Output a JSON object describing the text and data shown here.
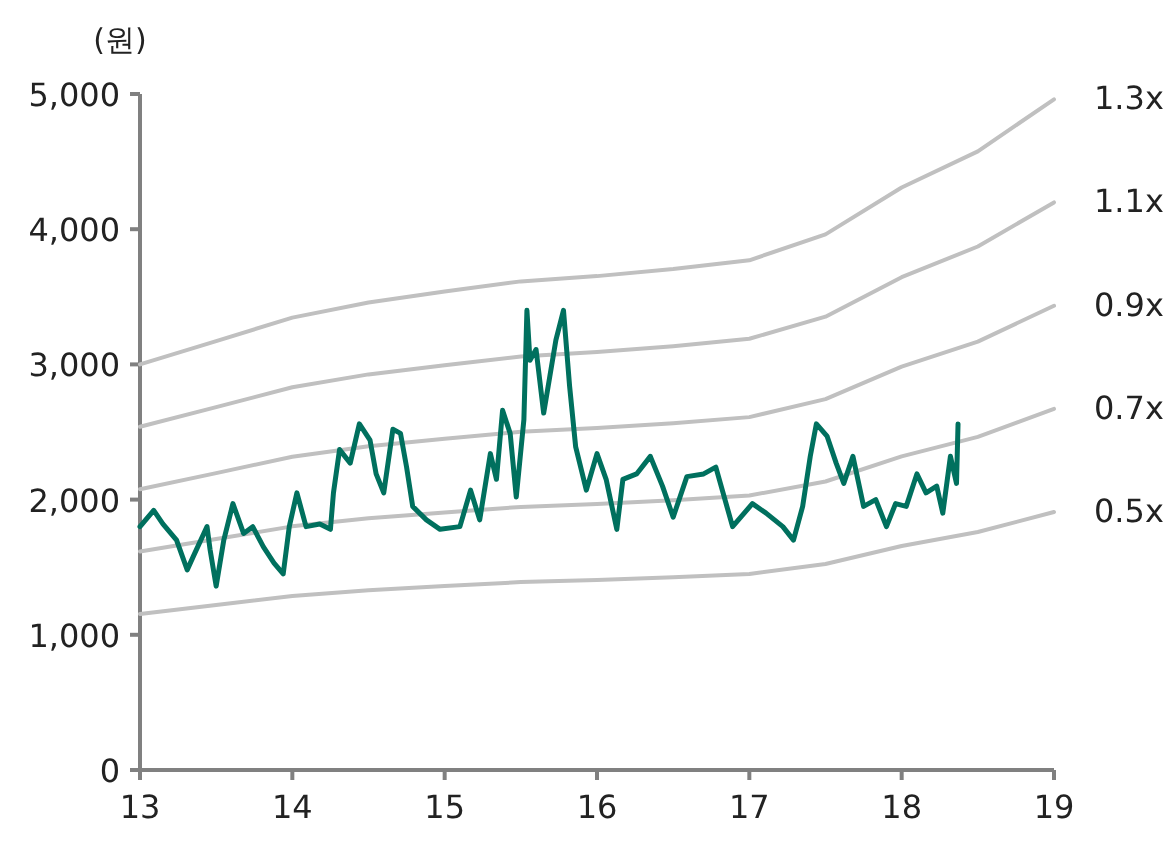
{
  "chart_data": {
    "type": "line",
    "ylabel": "(원)",
    "xlim": [
      13,
      19
    ],
    "xticks": [
      13,
      14,
      15,
      16,
      17,
      18,
      19
    ],
    "ylim": [
      0,
      5000
    ],
    "yticks": [
      {
        "value": 0,
        "label": "0"
      },
      {
        "value": 1000,
        "label": "1,000"
      },
      {
        "value": 2000,
        "label": "2,000"
      },
      {
        "value": 3000,
        "label": "3,000"
      },
      {
        "value": 4000,
        "label": "4,000"
      },
      {
        "value": 5000,
        "label": "5,000"
      }
    ],
    "grid": false,
    "legend": false,
    "marker": "none",
    "line_style": "solid",
    "series": [
      {
        "name": "1.3x",
        "color": "#c0c0c0",
        "x": [
          13,
          13.5,
          14,
          14.5,
          15,
          15.5,
          16,
          16.5,
          17,
          17.5,
          18,
          18.5,
          19
        ],
        "values": [
          3000,
          3172,
          3346,
          3458,
          3539,
          3614,
          3653,
          3705,
          3770,
          3962,
          4308,
          4576,
          4961
        ]
      },
      {
        "name": "1.1x",
        "color": "#c0c0c0",
        "x": [
          13,
          13.5,
          14,
          14.5,
          15,
          15.5,
          16,
          16.5,
          17,
          17.5,
          18,
          18.5,
          19
        ],
        "values": [
          2539,
          2684,
          2831,
          2926,
          2994,
          3058,
          3091,
          3135,
          3190,
          3353,
          3645,
          3872,
          4198
        ]
      },
      {
        "name": "0.9x",
        "color": "#c0c0c0",
        "x": [
          13,
          13.5,
          14,
          14.5,
          15,
          15.5,
          16,
          16.5,
          17,
          17.5,
          18,
          18.5,
          19
        ],
        "values": [
          2077,
          2196,
          2317,
          2394,
          2450,
          2502,
          2529,
          2565,
          2610,
          2743,
          2983,
          3168,
          3434
        ]
      },
      {
        "name": "0.7x",
        "color": "#c0c0c0",
        "x": [
          13,
          13.5,
          14,
          14.5,
          15,
          15.5,
          16,
          16.5,
          17,
          17.5,
          18,
          18.5,
          19
        ],
        "values": [
          1616,
          1708,
          1802,
          1862,
          1905,
          1946,
          1967,
          1995,
          2030,
          2134,
          2320,
          2464,
          2671
        ]
      },
      {
        "name": "0.5x",
        "color": "#c0c0c0",
        "x": [
          13,
          13.5,
          14,
          14.5,
          15,
          15.5,
          16,
          16.5,
          17,
          17.5,
          18,
          18.5,
          19
        ],
        "values": [
          1154,
          1220,
          1287,
          1330,
          1361,
          1390,
          1405,
          1425,
          1450,
          1524,
          1657,
          1760,
          1908
        ]
      },
      {
        "color": "#00705e",
        "x": [
          13.0,
          13.09,
          13.15,
          13.24,
          13.31,
          13.35,
          13.44,
          13.46,
          13.5,
          13.55,
          13.61,
          13.68,
          13.74,
          13.81,
          13.88,
          13.94,
          13.98,
          14.03,
          14.09,
          14.18,
          14.25,
          14.27,
          14.31,
          14.38,
          14.44,
          14.51,
          14.55,
          14.6,
          14.66,
          14.71,
          14.75,
          14.79,
          14.88,
          14.97,
          15.1,
          15.17,
          15.23,
          15.3,
          15.34,
          15.38,
          15.43,
          15.47,
          15.52,
          15.54,
          15.56,
          15.6,
          15.65,
          15.69,
          15.73,
          15.78,
          15.82,
          15.86,
          15.93,
          16.0,
          16.06,
          16.13,
          16.17,
          16.26,
          16.35,
          16.43,
          16.5,
          16.59,
          16.7,
          16.78,
          16.89,
          17.02,
          17.11,
          17.22,
          17.29,
          17.35,
          17.4,
          17.44,
          17.51,
          17.57,
          17.62,
          17.68,
          17.75,
          17.83,
          17.9,
          17.96,
          18.03,
          18.1,
          18.16,
          18.23,
          18.27,
          18.32,
          18.36,
          18.37
        ],
        "values": [
          1800,
          1920,
          1820,
          1700,
          1480,
          1580,
          1800,
          1630,
          1360,
          1700,
          1970,
          1750,
          1800,
          1650,
          1530,
          1450,
          1800,
          2050,
          1800,
          1820,
          1780,
          2050,
          2370,
          2270,
          2560,
          2440,
          2190,
          2050,
          2520,
          2490,
          2240,
          1950,
          1850,
          1780,
          1800,
          2070,
          1850,
          2340,
          2150,
          2660,
          2490,
          2020,
          2590,
          3400,
          3030,
          3110,
          2640,
          2910,
          3180,
          3400,
          2840,
          2390,
          2070,
          2340,
          2150,
          1780,
          2150,
          2190,
          2320,
          2100,
          1870,
          2170,
          2190,
          2240,
          1800,
          1970,
          1900,
          1800,
          1700,
          1950,
          2320,
          2560,
          2470,
          2270,
          2120,
          2320,
          1950,
          2000,
          1800,
          1970,
          1950,
          2190,
          2050,
          2100,
          1900,
          2320,
          2120,
          2560
        ]
      }
    ]
  }
}
